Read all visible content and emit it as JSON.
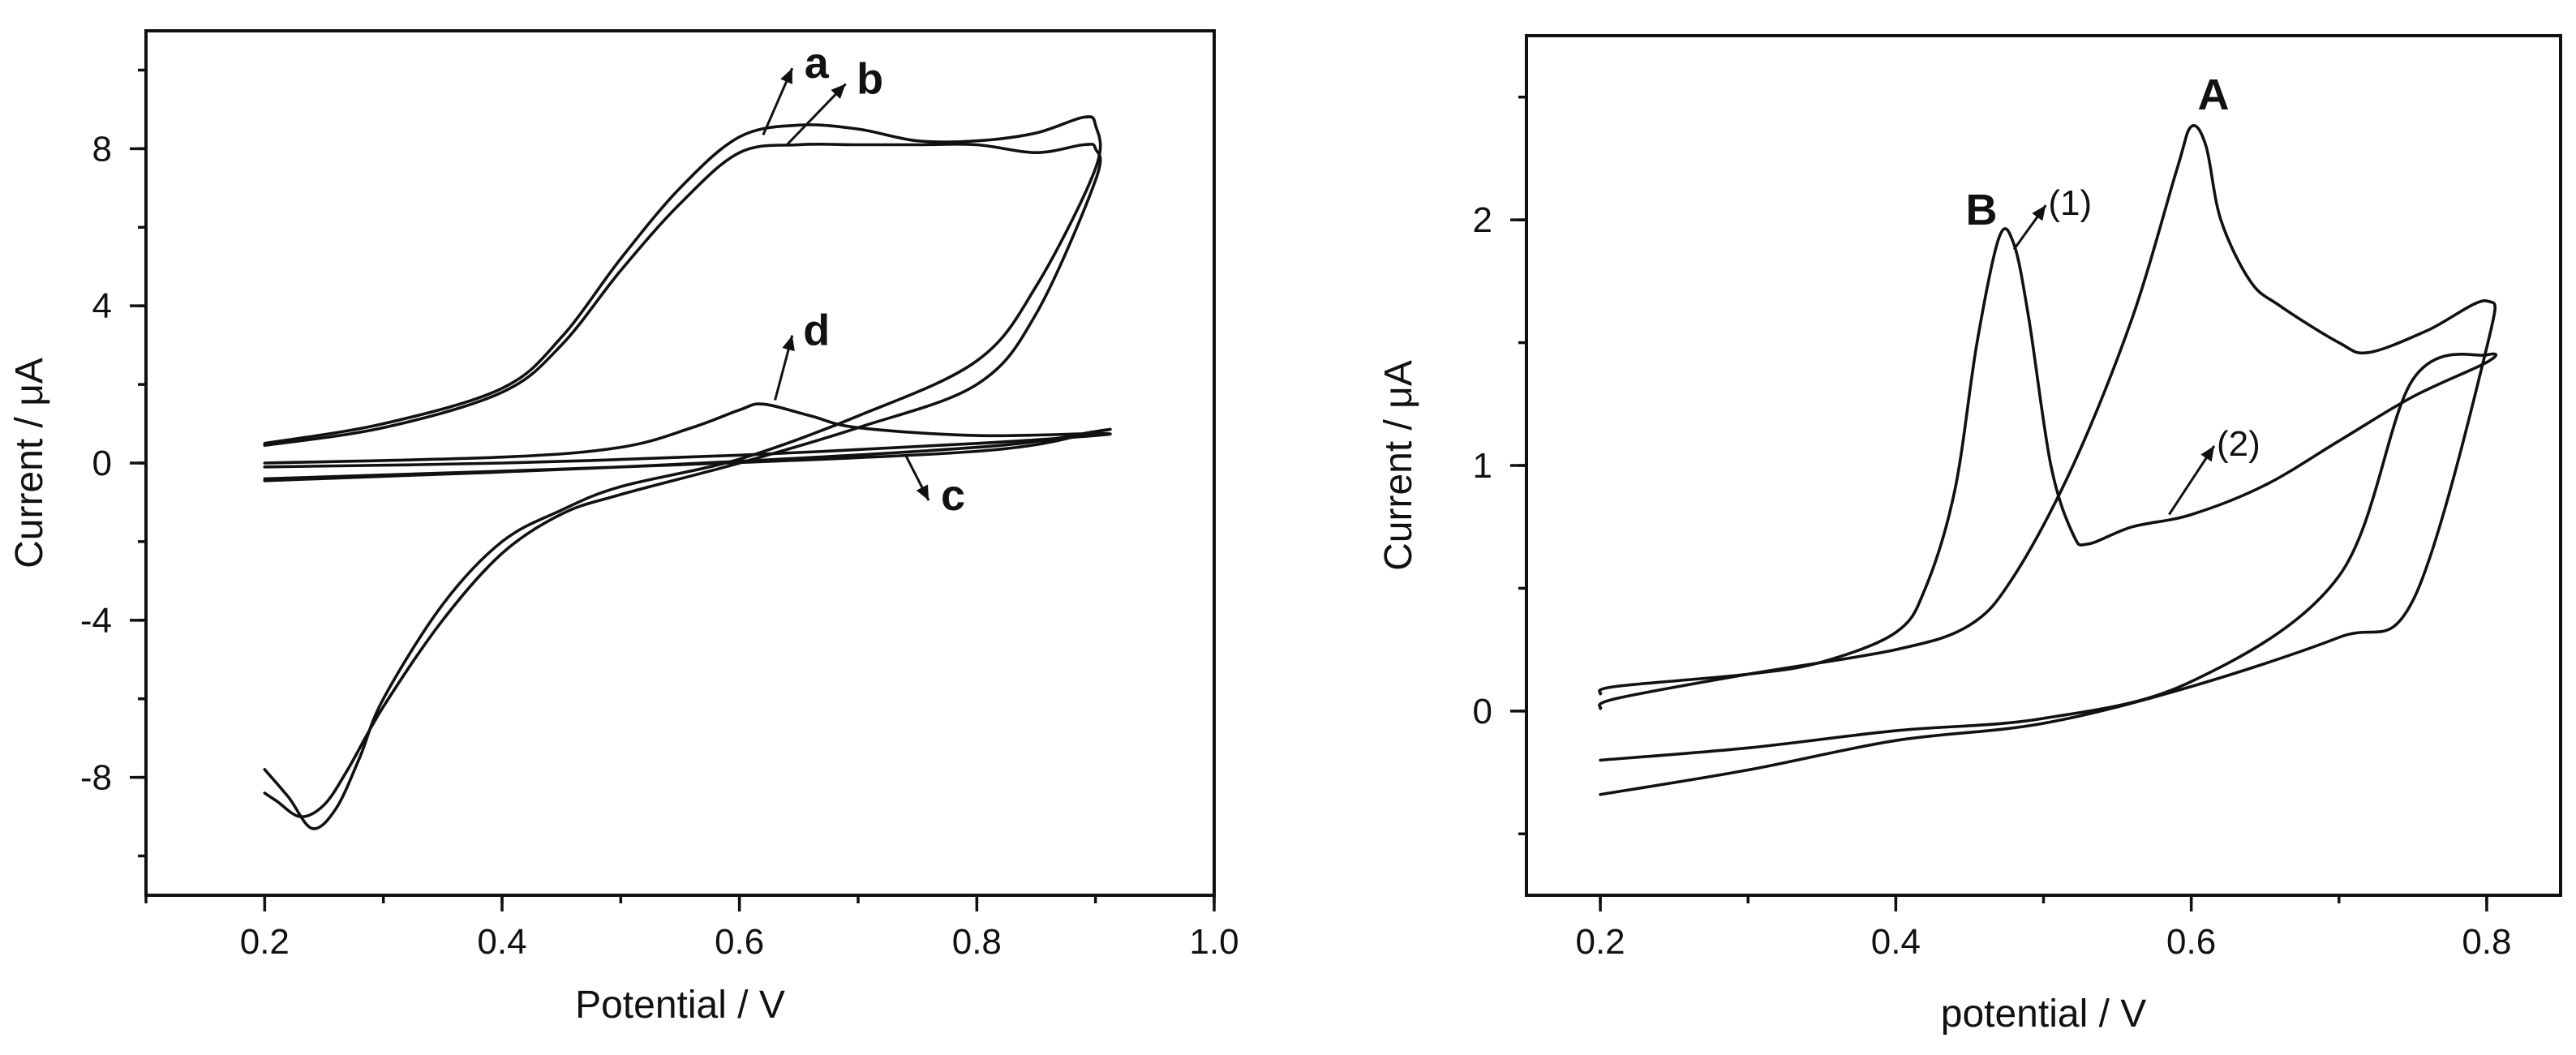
{
  "chart_data": [
    {
      "type": "line",
      "xlabel": "Potential / V",
      "ylabel": "Current / μA",
      "xlim": [
        0.1,
        1.0
      ],
      "ylim": [
        -11,
        11
      ],
      "x_ticks": [
        {
          "value": 0.2,
          "label": "0.2"
        },
        {
          "value": 0.4,
          "label": "0.4"
        },
        {
          "value": 0.6,
          "label": "0.6"
        },
        {
          "value": 0.8,
          "label": "0.8"
        },
        {
          "value": 1.0,
          "label": "1.0"
        }
      ],
      "y_ticks": [
        {
          "value": 8,
          "label": "8"
        },
        {
          "value": 4,
          "label": "4"
        },
        {
          "value": 0,
          "label": "0"
        },
        {
          "value": -4,
          "label": "-4"
        },
        {
          "value": -8,
          "label": "-8"
        }
      ],
      "grid": false,
      "series": [
        {
          "name": "a",
          "x": [
            0.2,
            0.3,
            0.4,
            0.45,
            0.5,
            0.55,
            0.6,
            0.65,
            0.7,
            0.75,
            0.8,
            0.85,
            0.89,
            0.9,
            0.9,
            0.85,
            0.8,
            0.7,
            0.6,
            0.5,
            0.45,
            0.4,
            0.35,
            0.3,
            0.28,
            0.26,
            0.24,
            0.22,
            0.2
          ],
          "y": [
            0.5,
            1.0,
            1.9,
            3.2,
            5.2,
            7.0,
            8.3,
            8.6,
            8.5,
            8.2,
            8.2,
            8.4,
            8.8,
            8.6,
            7.5,
            4.5,
            2.6,
            1.2,
            0.1,
            -0.6,
            -1.2,
            -2.0,
            -3.6,
            -6.0,
            -7.5,
            -8.8,
            -9.3,
            -8.5,
            -7.8
          ]
        },
        {
          "name": "b",
          "x": [
            0.2,
            0.3,
            0.4,
            0.45,
            0.5,
            0.55,
            0.6,
            0.65,
            0.7,
            0.75,
            0.8,
            0.85,
            0.89,
            0.9,
            0.9,
            0.85,
            0.8,
            0.7,
            0.6,
            0.5,
            0.45,
            0.4,
            0.35,
            0.3,
            0.27,
            0.25,
            0.23,
            0.21,
            0.2
          ],
          "y": [
            0.45,
            0.9,
            1.8,
            3.0,
            4.9,
            6.6,
            7.9,
            8.1,
            8.1,
            8.1,
            8.1,
            7.9,
            8.1,
            8.0,
            7.2,
            3.8,
            2.0,
            0.9,
            0.0,
            -0.8,
            -1.3,
            -2.3,
            -4.0,
            -6.2,
            -7.8,
            -8.7,
            -9.0,
            -8.6,
            -8.4
          ]
        },
        {
          "name": "c",
          "x": [
            0.2,
            0.5,
            0.8,
            0.9,
            0.9,
            0.8,
            0.5,
            0.2
          ],
          "y": [
            -0.4,
            -0.1,
            0.3,
            0.8,
            0.8,
            0.4,
            -0.1,
            -0.45
          ]
        },
        {
          "name": "d",
          "x": [
            0.2,
            0.4,
            0.5,
            0.56,
            0.6,
            0.62,
            0.66,
            0.7,
            0.8,
            0.9,
            0.9,
            0.8,
            0.6,
            0.4,
            0.2
          ],
          "y": [
            0.0,
            0.15,
            0.4,
            0.9,
            1.35,
            1.5,
            1.2,
            0.9,
            0.7,
            0.75,
            0.7,
            0.5,
            0.2,
            0.0,
            -0.1
          ]
        }
      ],
      "annotations": [
        {
          "text": "a",
          "target_x": 0.62,
          "target_y": 8.35,
          "label_x": 0.665,
          "label_y": 9.8
        },
        {
          "text": "b",
          "target_x": 0.64,
          "target_y": 8.1,
          "label_x": 0.71,
          "label_y": 9.4
        },
        {
          "text": "c",
          "target_x": 0.74,
          "target_y": 0.2,
          "label_x": 0.78,
          "label_y": -1.2
        },
        {
          "text": "d",
          "target_x": 0.63,
          "target_y": 1.6,
          "label_x": 0.665,
          "label_y": 3.0
        }
      ]
    },
    {
      "type": "line",
      "xlabel": "potential / V",
      "ylabel": "Current / μA",
      "xlim": [
        0.15,
        0.85
      ],
      "ylim": [
        -0.75,
        2.75
      ],
      "x_ticks": [
        {
          "value": 0.2,
          "label": "0.2"
        },
        {
          "value": 0.4,
          "label": "0.4"
        },
        {
          "value": 0.6,
          "label": "0.6"
        },
        {
          "value": 0.8,
          "label": "0.8"
        }
      ],
      "y_ticks": [
        {
          "value": 2,
          "label": "2"
        },
        {
          "value": 1,
          "label": "1"
        },
        {
          "value": 0,
          "label": "0"
        }
      ],
      "grid": false,
      "series": [
        {
          "name": "(1)",
          "x": [
            0.2,
            0.21,
            0.3,
            0.35,
            0.4,
            0.42,
            0.44,
            0.455,
            0.47,
            0.48,
            0.49,
            0.505,
            0.52,
            0.53,
            0.56,
            0.6,
            0.65,
            0.7,
            0.75,
            0.8,
            0.8,
            0.75,
            0.7,
            0.6,
            0.5,
            0.4,
            0.3,
            0.2
          ],
          "y": [
            0.07,
            0.1,
            0.15,
            0.2,
            0.32,
            0.5,
            0.9,
            1.5,
            1.93,
            1.9,
            1.6,
            1.0,
            0.72,
            0.68,
            0.75,
            0.8,
            0.92,
            1.1,
            1.28,
            1.42,
            1.45,
            1.35,
            0.55,
            0.12,
            -0.03,
            -0.08,
            -0.15,
            -0.2
          ]
        },
        {
          "name": "(2)",
          "x": [
            0.2,
            0.21,
            0.3,
            0.4,
            0.45,
            0.48,
            0.52,
            0.56,
            0.59,
            0.6,
            0.61,
            0.62,
            0.64,
            0.66,
            0.7,
            0.72,
            0.76,
            0.8,
            0.8,
            0.75,
            0.7,
            0.6,
            0.5,
            0.4,
            0.3,
            0.2
          ],
          "y": [
            0.01,
            0.05,
            0.15,
            0.25,
            0.35,
            0.55,
            1.0,
            1.6,
            2.2,
            2.38,
            2.3,
            2.0,
            1.75,
            1.65,
            1.5,
            1.46,
            1.55,
            1.67,
            1.48,
            0.45,
            0.3,
            0.1,
            -0.05,
            -0.12,
            -0.24,
            -0.34
          ]
        }
      ],
      "annotations": [
        {
          "text": "A",
          "bold": true,
          "label_x": 0.615,
          "label_y": 2.45
        },
        {
          "text": "B",
          "bold": true,
          "label_x": 0.458,
          "label_y": 1.98
        },
        {
          "text": "(1)",
          "bold": false,
          "target_x": 0.48,
          "target_y": 1.88,
          "label_x": 0.518,
          "label_y": 2.02
        },
        {
          "text": "(2)",
          "bold": false,
          "target_x": 0.585,
          "target_y": 0.8,
          "label_x": 0.632,
          "label_y": 1.04
        }
      ]
    }
  ]
}
